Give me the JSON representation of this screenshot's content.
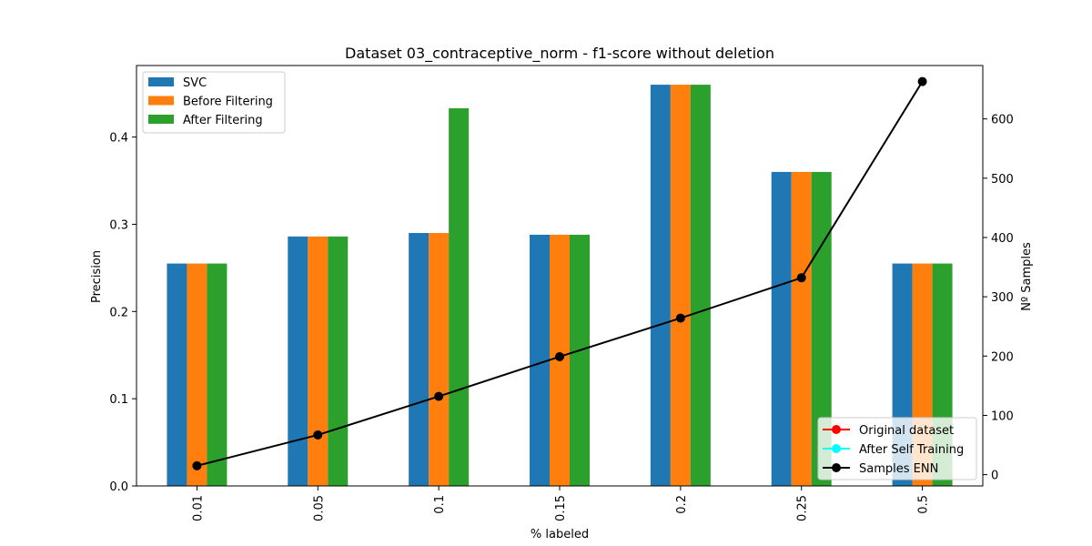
{
  "chart_data": {
    "type": "bar",
    "title": "Dataset 03_contraceptive_norm - f1-score without deletion",
    "xlabel": "% labeled",
    "ylabel": "Precision",
    "y2label": "Nº Samples",
    "categories": [
      "0.01",
      "0.05",
      "0.1",
      "0.15",
      "0.2",
      "0.25",
      "0.5"
    ],
    "ylim": [
      0,
      0.482
    ],
    "yticks": [
      "0.0",
      "0.1",
      "0.2",
      "0.3",
      "0.4"
    ],
    "y2lim": [
      -19,
      690
    ],
    "y2ticks": [
      "0",
      "100",
      "200",
      "300",
      "400",
      "500",
      "600"
    ],
    "series": [
      {
        "name": "SVC",
        "color": "#1f77b4",
        "values": [
          0.255,
          0.286,
          0.29,
          0.288,
          0.46,
          0.36,
          0.255
        ]
      },
      {
        "name": "Before Filtering",
        "color": "#ff7f0e",
        "values": [
          0.255,
          0.286,
          0.29,
          0.288,
          0.46,
          0.36,
          0.255
        ]
      },
      {
        "name": "After Filtering",
        "color": "#2ca02c",
        "values": [
          0.255,
          0.286,
          0.433,
          0.288,
          0.46,
          0.36,
          0.255
        ]
      }
    ],
    "line_series": [
      {
        "name": "Original dataset",
        "color": "#ff0000",
        "values": []
      },
      {
        "name": "After Self Training",
        "color": "#00ffff",
        "values": []
      },
      {
        "name": "Samples ENN",
        "color": "#000000",
        "values": [
          15,
          67,
          132,
          199,
          264,
          332,
          663
        ]
      }
    ],
    "bar_legend_position": "upper-left",
    "line_legend_position": "lower-right",
    "grid": false
  }
}
